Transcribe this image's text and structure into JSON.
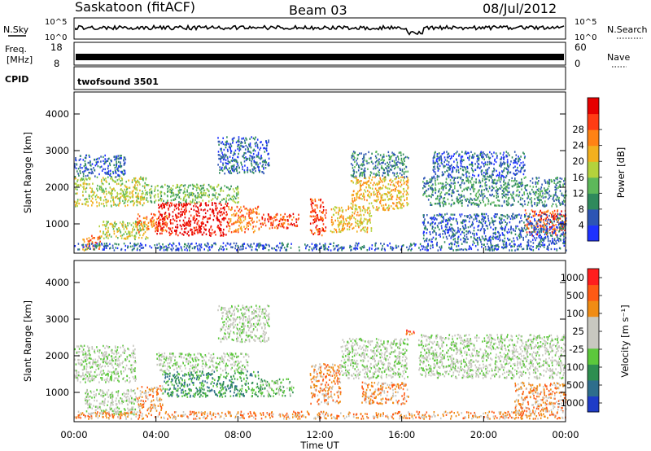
{
  "header": {
    "radar": "Saskatoon (fitACF)",
    "beam": "Beam 03",
    "date": "08/Jul/2012"
  },
  "summary_panels": {
    "nsky": {
      "left_label": "N.Sky",
      "right_label": "N.Search",
      "ticks_left": [
        "10^5",
        "10^0"
      ],
      "ticks_right": [
        "10^5",
        "10^0"
      ]
    },
    "freq": {
      "left_label_1": "Freq.",
      "left_label_2": "[MHz]",
      "right_label": "Nave",
      "ticks_left": [
        "18",
        "8"
      ],
      "ticks_right": [
        "60",
        "0"
      ]
    },
    "cpid": {
      "left_label": "CPID",
      "program": "twofsound 3501"
    }
  },
  "chart_data": [
    {
      "type": "heatmap",
      "panel": "power",
      "ylabel": "Slant Range [km]",
      "yticks": [
        "1000",
        "2000",
        "3000",
        "4000"
      ],
      "ylim": [
        200,
        4600
      ],
      "xlim": [
        0,
        24
      ],
      "colorbar": {
        "label": "Power [dB]",
        "ticks": [
          "4",
          "8",
          "12",
          "16",
          "20",
          "24",
          "28"
        ],
        "colors": [
          "#1e32ff",
          "#2d55b4",
          "#2f8a5c",
          "#5db85a",
          "#b4d23c",
          "#f2b01e",
          "#ff8214",
          "#ff3c14",
          "#e60000"
        ]
      },
      "bands": [
        {
          "t0": 0.4,
          "t1": 1.3,
          "r0": 300,
          "r1": 700,
          "level": 6
        },
        {
          "t0": 0.0,
          "t1": 3.5,
          "r0": 1500,
          "r1": 2300,
          "level": 4
        },
        {
          "t0": 0.0,
          "t1": 2.5,
          "r0": 2300,
          "r1": 2900,
          "level": 1
        },
        {
          "t0": 1.2,
          "t1": 3.6,
          "r0": 600,
          "r1": 1100,
          "level": 4
        },
        {
          "t0": 3.0,
          "t1": 4.5,
          "r0": 800,
          "r1": 1300,
          "level": 6
        },
        {
          "t0": 4.0,
          "t1": 7.5,
          "r0": 700,
          "r1": 1600,
          "level": 8
        },
        {
          "t0": 7.5,
          "t1": 9.0,
          "r0": 800,
          "r1": 1500,
          "level": 6
        },
        {
          "t0": 3.5,
          "t1": 8.0,
          "r0": 1600,
          "r1": 2100,
          "level": 3
        },
        {
          "t0": 7.0,
          "t1": 9.5,
          "r0": 2400,
          "r1": 3400,
          "level": 1
        },
        {
          "t0": 9.0,
          "t1": 11.0,
          "r0": 900,
          "r1": 1300,
          "level": 7
        },
        {
          "t0": 11.5,
          "t1": 12.3,
          "r0": 700,
          "r1": 1700,
          "level": 7
        },
        {
          "t0": 12.5,
          "t1": 14.5,
          "r0": 800,
          "r1": 1500,
          "level": 5
        },
        {
          "t0": 13.5,
          "t1": 16.3,
          "r0": 1400,
          "r1": 2300,
          "level": 5
        },
        {
          "t0": 13.5,
          "t1": 16.3,
          "r0": 2300,
          "r1": 3000,
          "level": 2
        },
        {
          "t0": 17.0,
          "t1": 24.0,
          "r0": 1500,
          "r1": 2300,
          "level": 2
        },
        {
          "t0": 17.5,
          "t1": 22.0,
          "r0": 2300,
          "r1": 3000,
          "level": 1
        },
        {
          "t0": 22.0,
          "t1": 24.0,
          "r0": 700,
          "r1": 1400,
          "level": 7
        },
        {
          "t0": 0.0,
          "t1": 24.0,
          "r0": 300,
          "r1": 500,
          "level": 1
        },
        {
          "t0": 17.0,
          "t1": 24.0,
          "r0": 500,
          "r1": 1300,
          "level": 1
        }
      ]
    },
    {
      "type": "heatmap",
      "panel": "velocity",
      "ylabel": "Slant Range [km]",
      "yticks": [
        "1000",
        "2000",
        "3000",
        "4000"
      ],
      "ylim": [
        200,
        4600
      ],
      "xlim": [
        0,
        24
      ],
      "xlabel": "Time UT",
      "xticks": [
        "00:00",
        "04:00",
        "08:00",
        "12:00",
        "16:00",
        "20:00",
        "00:00"
      ],
      "colorbar": {
        "label": "Velocity [m s⁻¹]",
        "ticks": [
          "1000",
          "500",
          "100",
          "25",
          "-25",
          "-100",
          "-500",
          "-1000"
        ],
        "colors": [
          "#1e3cc8",
          "#2e6e8c",
          "#2e8e50",
          "#5cc83c",
          "#c8c8c0",
          "#c8c8c0",
          "#f08c14",
          "#ff5a14",
          "#ff1e1e"
        ]
      },
      "bands": [
        {
          "t0": 0.0,
          "t1": 3.0,
          "r0": 1300,
          "r1": 2300,
          "level": 4
        },
        {
          "t0": 0.5,
          "t1": 3.0,
          "r0": 400,
          "r1": 1100,
          "level": 4
        },
        {
          "t0": 3.0,
          "t1": 4.3,
          "r0": 500,
          "r1": 1200,
          "level": 6
        },
        {
          "t0": 4.3,
          "t1": 9.0,
          "r0": 900,
          "r1": 1600,
          "level": 2
        },
        {
          "t0": 4.0,
          "t1": 8.5,
          "r0": 1600,
          "r1": 2100,
          "level": 4
        },
        {
          "t0": 7.0,
          "t1": 9.5,
          "r0": 2400,
          "r1": 3400,
          "level": 4
        },
        {
          "t0": 9.0,
          "t1": 10.7,
          "r0": 900,
          "r1": 1400,
          "level": 3
        },
        {
          "t0": 11.5,
          "t1": 13.0,
          "r0": 700,
          "r1": 1800,
          "level": 6
        },
        {
          "t0": 13.0,
          "t1": 16.3,
          "r0": 1400,
          "r1": 2500,
          "level": 4
        },
        {
          "t0": 14.0,
          "t1": 16.3,
          "r0": 700,
          "r1": 1300,
          "level": 6
        },
        {
          "t0": 16.8,
          "t1": 24.0,
          "r0": 1400,
          "r1": 2600,
          "level": 4
        },
        {
          "t0": 21.5,
          "t1": 24.0,
          "r0": 500,
          "r1": 1300,
          "level": 6
        },
        {
          "t0": 16.2,
          "t1": 16.6,
          "r0": 2600,
          "r1": 2800,
          "level": 7
        },
        {
          "t0": 0.0,
          "t1": 24.0,
          "r0": 300,
          "r1": 500,
          "level": 6
        }
      ]
    }
  ]
}
